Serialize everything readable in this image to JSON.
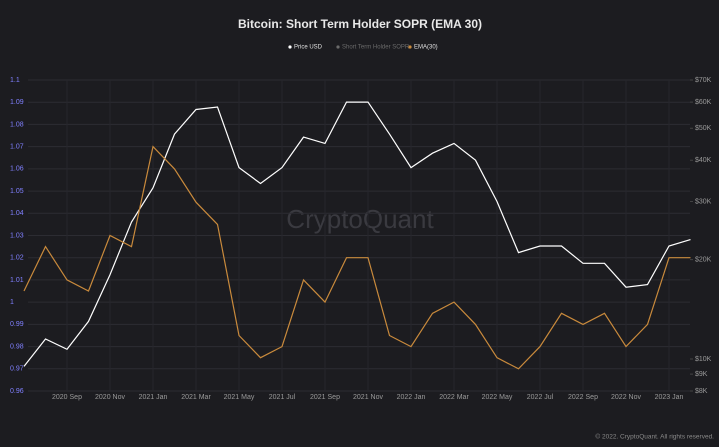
{
  "chart_data": {
    "type": "line",
    "title": "Bitcoin: Short Term Holder SOPR (EMA 30)",
    "watermark": "CryptoQuant",
    "footer": "© 2022. CryptoQuant. All rights reserved.",
    "categories": [
      null,
      null,
      "2020 Sep",
      null,
      "2020 Nov",
      null,
      "2021 Jan",
      null,
      "2021 Mar",
      null,
      "2021 May",
      null,
      "2021 Jul",
      null,
      "2021 Sep",
      null,
      "2021 Nov",
      null,
      "2022 Jan",
      null,
      "2022 Mar",
      null,
      "2022 May",
      null,
      "2022 Jul",
      null,
      "2022 Sep",
      null,
      "2022 Nov",
      null,
      "2023 Jan",
      null
    ],
    "series": [
      {
        "name": "Price USD",
        "color": "#ffffff",
        "axis": "y2",
        "values": [
          9500,
          11500,
          10700,
          13000,
          18000,
          26000,
          33000,
          48000,
          57000,
          58000,
          38000,
          34000,
          38000,
          47000,
          45000,
          60000,
          60000,
          48000,
          38000,
          42000,
          45000,
          40000,
          30000,
          21000,
          22000,
          22000,
          19500,
          19500,
          16500,
          16800,
          22000,
          23000
        ]
      },
      {
        "name": "Short Term Holder SOPR",
        "color": "#6a6a6a",
        "visible": false
      },
      {
        "name": "EMA(30)",
        "color": "#c98a3c",
        "values": [
          1.005,
          1.025,
          1.01,
          1.005,
          1.03,
          1.025,
          1.07,
          1.06,
          1.045,
          1.035,
          0.985,
          0.975,
          0.98,
          1.01,
          1.0,
          1.02,
          1.02,
          0.985,
          0.98,
          0.995,
          1.0,
          0.99,
          0.975,
          0.97,
          0.98,
          0.995,
          0.99,
          0.995,
          0.98,
          0.99,
          1.02,
          1.02
        ]
      }
    ],
    "ylim": [
      0.96,
      1.1
    ],
    "yticks": [
      0.96,
      0.97,
      0.98,
      0.99,
      1,
      1.01,
      1.02,
      1.03,
      1.04,
      1.05,
      1.06,
      1.07,
      1.08,
      1.09,
      1.1
    ],
    "y2lim": [
      8000,
      70000
    ],
    "y2log": true,
    "y2ticks": [
      {
        "value": 8000,
        "label": "$8K"
      },
      {
        "value": 9000,
        "label": "$9K"
      },
      {
        "value": 10000,
        "label": "$10K"
      },
      {
        "value": 20000,
        "label": "$20K"
      },
      {
        "value": 30000,
        "label": "$30K"
      },
      {
        "value": 40000,
        "label": "$40K"
      },
      {
        "value": 50000,
        "label": "$50K"
      },
      {
        "value": 60000,
        "label": "$60K"
      },
      {
        "value": 70000,
        "label": "$70K"
      }
    ],
    "grid": true
  }
}
